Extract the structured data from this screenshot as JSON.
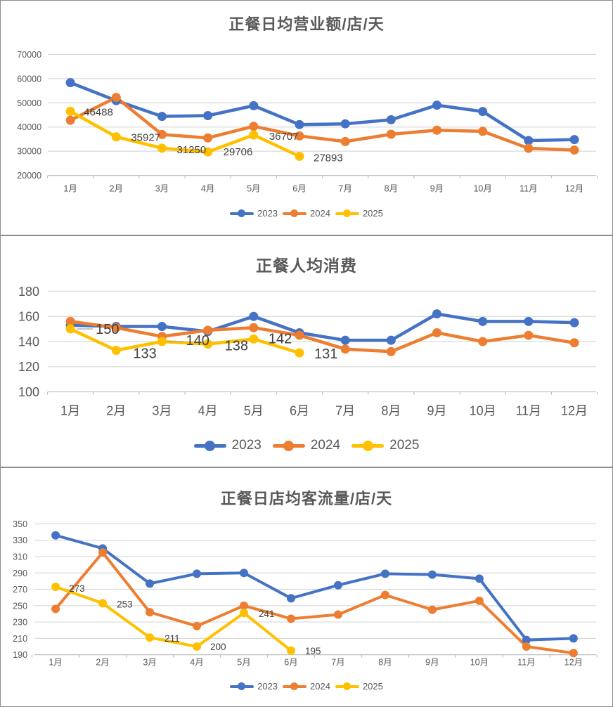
{
  "page": {
    "background": "#FFFFFF",
    "panel_border_color": "#8C8C8C"
  },
  "colors": {
    "series_2023": "#4472C4",
    "series_2024": "#ED7D31",
    "series_2025": "#FFC000",
    "gridline": "#D9D9D9",
    "axis_line": "#BFBFBF",
    "axis_text": "#595959",
    "data_label_text": "#404040",
    "title_text": "#595959"
  },
  "chart_data": [
    {
      "type": "line",
      "title": "正餐日均营业额/店/天",
      "categories": [
        "1月",
        "2月",
        "3月",
        "4月",
        "5月",
        "6月",
        "7月",
        "8月",
        "9月",
        "10月",
        "11月",
        "12月"
      ],
      "ylim": [
        20000,
        70000
      ],
      "yticks": [
        20000,
        30000,
        40000,
        50000,
        60000,
        70000
      ],
      "grid": true,
      "legend_position": "bottom",
      "series": [
        {
          "name": "2023",
          "color": "#4472C4",
          "values": [
            58300,
            50900,
            44400,
            44700,
            48800,
            41000,
            41300,
            43000,
            49000,
            46400,
            34400,
            34800
          ]
        },
        {
          "name": "2024",
          "color": "#ED7D31",
          "values": [
            42800,
            52200,
            36900,
            35500,
            40300,
            36300,
            34000,
            37000,
            38700,
            38200,
            31200,
            30500
          ]
        },
        {
          "name": "2025",
          "color": "#FFC000",
          "values": [
            46488,
            35927,
            31250,
            29706,
            36707,
            27893
          ],
          "data_labels": [
            {
              "index": 0,
              "text": "46488",
              "dx": 19,
              "dy": 6
            },
            {
              "index": 1,
              "text": "35927",
              "dx": 21,
              "dy": 6
            },
            {
              "index": 2,
              "text": "31250",
              "dx": 21,
              "dy": 7
            },
            {
              "index": 3,
              "text": "29706",
              "dx": 22,
              "dy": 5
            },
            {
              "index": 4,
              "text": "36707",
              "dx": 22,
              "dy": 7
            },
            {
              "index": 5,
              "text": "27893",
              "dx": 20,
              "dy": 7
            }
          ]
        }
      ]
    },
    {
      "type": "line",
      "title": "正餐人均消费",
      "categories": [
        "1月",
        "2月",
        "3月",
        "4月",
        "5月",
        "6月",
        "7月",
        "8月",
        "9月",
        "10月",
        "11月",
        "12月"
      ],
      "ylim": [
        100,
        180
      ],
      "yticks": [
        100,
        120,
        140,
        160,
        180
      ],
      "grid": true,
      "legend_position": "bottom",
      "series": [
        {
          "name": "2023",
          "color": "#4472C4",
          "values": [
            153,
            152,
            152,
            148,
            160,
            147,
            141,
            141,
            162,
            156,
            156,
            155
          ]
        },
        {
          "name": "2024",
          "color": "#ED7D31",
          "values": [
            156,
            151,
            144,
            149,
            151,
            145,
            134,
            132,
            147,
            140,
            145,
            139
          ]
        },
        {
          "name": "2025",
          "color": "#FFC000",
          "values": [
            150,
            133,
            140,
            138,
            142,
            131
          ],
          "data_labels": [
            {
              "index": 0,
              "text": "150",
              "dx": 36,
              "dy": 7,
              "leader": true
            },
            {
              "index": 1,
              "text": "133",
              "dx": 24,
              "dy": 11
            },
            {
              "index": 2,
              "text": "140",
              "dx": 34,
              "dy": 5,
              "leader": true
            },
            {
              "index": 3,
              "text": "138",
              "dx": 24,
              "dy": 9
            },
            {
              "index": 4,
              "text": "142",
              "dx": 21,
              "dy": 6
            },
            {
              "index": 5,
              "text": "131",
              "dx": 21,
              "dy": 8
            }
          ]
        }
      ]
    },
    {
      "type": "line",
      "title": "正餐日店均客流量/店/天",
      "categories": [
        "1月",
        "2月",
        "3月",
        "4月",
        "5月",
        "6月",
        "7月",
        "8月",
        "9月",
        "10月",
        "11月",
        "12月"
      ],
      "ylim": [
        190,
        350
      ],
      "yticks": [
        190,
        210,
        230,
        250,
        270,
        290,
        310,
        330,
        350
      ],
      "grid": true,
      "legend_position": "bottom",
      "series": [
        {
          "name": "2023",
          "color": "#4472C4",
          "values": [
            336,
            320,
            277,
            289,
            290,
            259,
            275,
            289,
            288,
            283,
            208,
            210
          ]
        },
        {
          "name": "2024",
          "color": "#ED7D31",
          "values": [
            246,
            315,
            242,
            225,
            250,
            234,
            239,
            263,
            245,
            256,
            200,
            192
          ]
        },
        {
          "name": "2025",
          "color": "#FFC000",
          "values": [
            273,
            253,
            211,
            200,
            241,
            195
          ],
          "data_labels": [
            {
              "index": 0,
              "text": "273",
              "dx": 19,
              "dy": 7
            },
            {
              "index": 1,
              "text": "253",
              "dx": 20,
              "dy": 6
            },
            {
              "index": 2,
              "text": "211",
              "dx": 21,
              "dy": 6
            },
            {
              "index": 3,
              "text": "200",
              "dx": 19,
              "dy": 5
            },
            {
              "index": 4,
              "text": "241",
              "dx": 21,
              "dy": 6
            },
            {
              "index": 5,
              "text": "195",
              "dx": 20,
              "dy": 5
            }
          ]
        }
      ]
    }
  ]
}
